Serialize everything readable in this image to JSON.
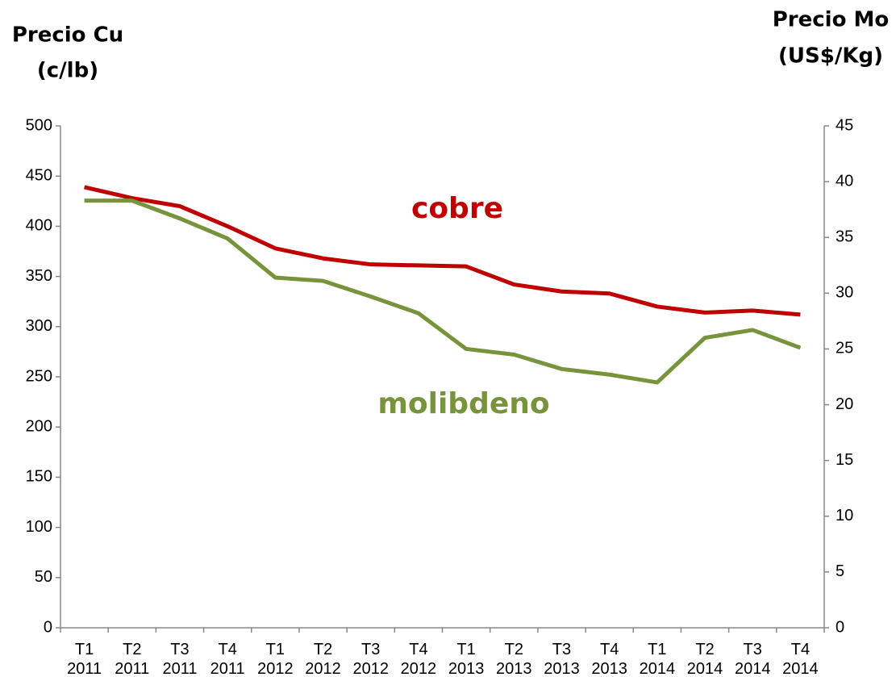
{
  "chart_data": {
    "type": "line",
    "y_label": [
      "Precio Cu",
      "(c/lb)"
    ],
    "y2_label": [
      "Precio Mo",
      "(US$/Kg)"
    ],
    "categories": [
      "T1 2011",
      "T2 2011",
      "T3 2011",
      "T4 2011",
      "T1 2012",
      "T2 2012",
      "T3 2012",
      "T4 2012",
      "T1 2013",
      "T2 2013",
      "T3 2013",
      "T4 2013",
      "T1 2014",
      "T2 2014",
      "T3 2014",
      "T4 2014"
    ],
    "series": [
      {
        "name": "cobre",
        "color": "#c00000",
        "values": [
          439,
          428,
          420,
          400,
          378,
          368,
          362,
          361,
          360,
          342,
          335,
          333,
          320,
          314,
          316,
          312
        ]
      },
      {
        "name": "molibdeno",
        "color": "#77933c",
        "axis": "y2",
        "values": [
          38.3,
          38.3,
          36.7,
          34.9,
          31.4,
          31.1,
          29.7,
          28.2,
          25.0,
          24.5,
          23.2,
          22.7,
          22.0,
          26.0,
          26.7,
          25.1
        ]
      }
    ],
    "ylim": [
      0,
      500
    ],
    "yticks": [
      0,
      50,
      100,
      150,
      200,
      250,
      300,
      350,
      400,
      450,
      500
    ],
    "y2lim": [
      0,
      45
    ],
    "y2ticks": [
      0,
      5,
      10,
      15,
      20,
      25,
      30,
      35,
      40,
      45
    ],
    "grid": false
  }
}
